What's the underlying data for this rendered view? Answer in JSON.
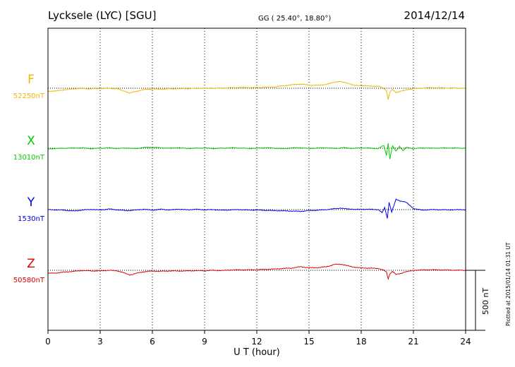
{
  "header": {
    "station": "Lycksele (LYC)  [SGU]",
    "coords": "GG ( 25.40°,  18.80°)",
    "date": "2014/12/14"
  },
  "footer": {
    "plotted": "Plotted at 2015/01/14 01:31  UT",
    "scale_label": "500 nT"
  },
  "chart_data": {
    "type": "line",
    "xlabel": "U T (hour)",
    "xlim": [
      0,
      24
    ],
    "xticks": [
      "0",
      "3",
      "6",
      "9",
      "12",
      "15",
      "18",
      "21",
      "24"
    ],
    "grid": "dotted vertical every 3 hours; dotted baseline per component",
    "scale_bar_nT": 500,
    "series": [
      {
        "name": "F",
        "baseline_label": "52250nT",
        "color": "#f0b400",
        "points": [
          [
            0,
            -25
          ],
          [
            0.5,
            -22
          ],
          [
            1,
            -12
          ],
          [
            1.5,
            -5
          ],
          [
            2,
            -2
          ],
          [
            2.5,
            -5
          ],
          [
            3,
            -3
          ],
          [
            3.5,
            0
          ],
          [
            4,
            -5
          ],
          [
            4.3,
            -20
          ],
          [
            4.7,
            -40
          ],
          [
            5,
            -28
          ],
          [
            5.5,
            -12
          ],
          [
            6,
            -6
          ],
          [
            6.5,
            -8
          ],
          [
            7,
            -5
          ],
          [
            7.5,
            -4
          ],
          [
            8,
            -3
          ],
          [
            8.5,
            -2
          ],
          [
            9,
            0
          ],
          [
            9.5,
            0
          ],
          [
            10,
            2
          ],
          [
            10.5,
            4
          ],
          [
            11,
            6
          ],
          [
            11.5,
            6
          ],
          [
            12,
            5
          ],
          [
            12.5,
            8
          ],
          [
            13,
            10
          ],
          [
            13.5,
            20
          ],
          [
            14,
            28
          ],
          [
            14.5,
            35
          ],
          [
            15,
            26
          ],
          [
            15.5,
            24
          ],
          [
            16,
            32
          ],
          [
            16.5,
            52
          ],
          [
            16.8,
            55
          ],
          [
            17.2,
            42
          ],
          [
            17.6,
            26
          ],
          [
            18,
            22
          ],
          [
            18.5,
            18
          ],
          [
            19,
            16
          ],
          [
            19.3,
            0
          ],
          [
            19.45,
            -20
          ],
          [
            19.55,
            -95
          ],
          [
            19.65,
            -30
          ],
          [
            19.8,
            -10
          ],
          [
            20,
            -35
          ],
          [
            20.3,
            -25
          ],
          [
            20.6,
            -12
          ],
          [
            21,
            -5
          ],
          [
            21.5,
            2
          ],
          [
            22,
            5
          ],
          [
            23,
            2
          ],
          [
            24,
            0
          ]
        ]
      },
      {
        "name": "X",
        "baseline_label": "13010nT",
        "color": "#00cc00",
        "points": [
          [
            0,
            -5
          ],
          [
            1,
            0
          ],
          [
            2,
            3
          ],
          [
            2.5,
            -4
          ],
          [
            3,
            0
          ],
          [
            3.5,
            3
          ],
          [
            4,
            -3
          ],
          [
            4.5,
            2
          ],
          [
            5,
            -4
          ],
          [
            5.5,
            6
          ],
          [
            6,
            8
          ],
          [
            6.5,
            3
          ],
          [
            7,
            0
          ],
          [
            7.5,
            4
          ],
          [
            8,
            -2
          ],
          [
            8.5,
            0
          ],
          [
            9,
            2
          ],
          [
            9.5,
            -3
          ],
          [
            10,
            0
          ],
          [
            10.5,
            3
          ],
          [
            11,
            2
          ],
          [
            11.5,
            -3
          ],
          [
            12,
            0
          ],
          [
            12.5,
            4
          ],
          [
            13,
            0
          ],
          [
            13.5,
            -5
          ],
          [
            14,
            2
          ],
          [
            14.5,
            4
          ],
          [
            15,
            -3
          ],
          [
            15.5,
            2
          ],
          [
            16,
            3
          ],
          [
            16.5,
            -2
          ],
          [
            17,
            4
          ],
          [
            17.5,
            -2
          ],
          [
            18,
            3
          ],
          [
            18.5,
            0
          ],
          [
            19,
            -3
          ],
          [
            19.3,
            25
          ],
          [
            19.45,
            -60
          ],
          [
            19.55,
            40
          ],
          [
            19.65,
            -90
          ],
          [
            19.8,
            20
          ],
          [
            20,
            -25
          ],
          [
            20.2,
            15
          ],
          [
            20.4,
            -20
          ],
          [
            20.6,
            10
          ],
          [
            21,
            -5
          ],
          [
            21.5,
            3
          ],
          [
            22,
            0
          ],
          [
            23,
            2
          ],
          [
            24,
            0
          ]
        ]
      },
      {
        "name": "Y",
        "baseline_label": "1530nT",
        "color": "#0000ee",
        "points": [
          [
            0,
            0
          ],
          [
            0.5,
            -2
          ],
          [
            1,
            -5
          ],
          [
            1.5,
            -12
          ],
          [
            2,
            -3
          ],
          [
            2.5,
            2
          ],
          [
            3,
            -3
          ],
          [
            3.5,
            5
          ],
          [
            4,
            -2
          ],
          [
            4.5,
            -8
          ],
          [
            5,
            -4
          ],
          [
            5.5,
            3
          ],
          [
            6,
            -5
          ],
          [
            6.5,
            3
          ],
          [
            7,
            -3
          ],
          [
            7.5,
            4
          ],
          [
            8,
            -2
          ],
          [
            8.5,
            3
          ],
          [
            9,
            -2
          ],
          [
            9.5,
            0
          ],
          [
            10,
            -5
          ],
          [
            10.5,
            -2
          ],
          [
            11,
            0
          ],
          [
            11.5,
            -4
          ],
          [
            12,
            -3
          ],
          [
            12.5,
            -6
          ],
          [
            13,
            -8
          ],
          [
            13.5,
            -10
          ],
          [
            14,
            -12
          ],
          [
            14.5,
            -15
          ],
          [
            15,
            -8
          ],
          [
            15.5,
            -5
          ],
          [
            16,
            0
          ],
          [
            16.5,
            8
          ],
          [
            16.8,
            12
          ],
          [
            17.2,
            5
          ],
          [
            17.6,
            0
          ],
          [
            18,
            4
          ],
          [
            18.5,
            2
          ],
          [
            19,
            0
          ],
          [
            19.2,
            -25
          ],
          [
            19.35,
            20
          ],
          [
            19.5,
            -75
          ],
          [
            19.6,
            60
          ],
          [
            19.75,
            -20
          ],
          [
            20,
            85
          ],
          [
            20.3,
            70
          ],
          [
            20.6,
            60
          ],
          [
            21,
            10
          ],
          [
            21.5,
            -5
          ],
          [
            22,
            0
          ],
          [
            23,
            -2
          ],
          [
            24,
            0
          ]
        ]
      },
      {
        "name": "Z",
        "baseline_label": "50580nT",
        "color": "#dd0000",
        "points": [
          [
            0,
            -25
          ],
          [
            0.5,
            -22
          ],
          [
            1,
            -14
          ],
          [
            1.5,
            -8
          ],
          [
            2,
            -2
          ],
          [
            2.5,
            -5
          ],
          [
            3,
            -5
          ],
          [
            3.5,
            0
          ],
          [
            4,
            -5
          ],
          [
            4.3,
            -18
          ],
          [
            4.7,
            -40
          ],
          [
            5,
            -28
          ],
          [
            5.5,
            -12
          ],
          [
            6,
            -6
          ],
          [
            6.5,
            -8
          ],
          [
            7,
            -5
          ],
          [
            7.5,
            -6
          ],
          [
            8,
            -5
          ],
          [
            8.5,
            -3
          ],
          [
            9,
            -4
          ],
          [
            9.5,
            0
          ],
          [
            10,
            -2
          ],
          [
            10.5,
            3
          ],
          [
            11,
            4
          ],
          [
            11.5,
            4
          ],
          [
            12,
            5
          ],
          [
            12.5,
            8
          ],
          [
            13,
            10
          ],
          [
            13.5,
            15
          ],
          [
            14,
            18
          ],
          [
            14.5,
            30
          ],
          [
            15,
            22
          ],
          [
            15.5,
            22
          ],
          [
            16,
            30
          ],
          [
            16.5,
            50
          ],
          [
            16.8,
            52
          ],
          [
            17.2,
            40
          ],
          [
            17.6,
            24
          ],
          [
            18,
            20
          ],
          [
            18.5,
            18
          ],
          [
            19,
            15
          ],
          [
            19.3,
            0
          ],
          [
            19.45,
            -15
          ],
          [
            19.55,
            -70
          ],
          [
            19.65,
            -30
          ],
          [
            19.8,
            -10
          ],
          [
            20,
            -35
          ],
          [
            20.3,
            -25
          ],
          [
            20.6,
            -12
          ],
          [
            21,
            0
          ],
          [
            21.5,
            3
          ],
          [
            22,
            5
          ],
          [
            23,
            2
          ],
          [
            24,
            0
          ]
        ]
      }
    ]
  }
}
